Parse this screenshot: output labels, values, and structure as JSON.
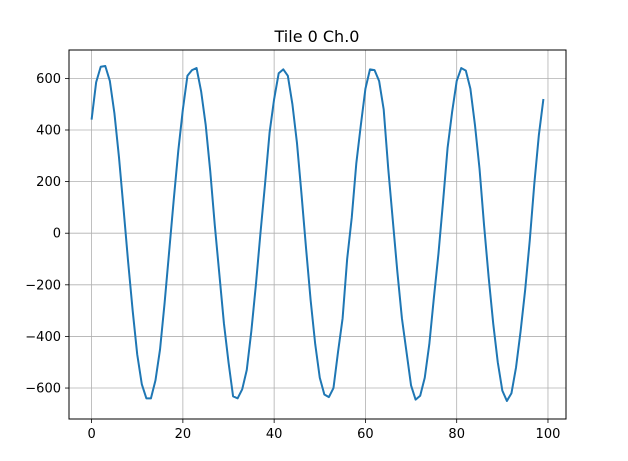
{
  "chart_data": {
    "type": "line",
    "title": "Tile 0 Ch.0",
    "xlabel": "",
    "ylabel": "",
    "xlim": [
      -4.95,
      103.95
    ],
    "ylim": [
      -720,
      710
    ],
    "x_ticks": [
      0,
      20,
      40,
      60,
      80,
      100
    ],
    "x_tick_labels": [
      "0",
      "20",
      "40",
      "60",
      "80",
      "100"
    ],
    "y_ticks": [
      -600,
      -400,
      -200,
      0,
      200,
      400,
      600
    ],
    "y_tick_labels": [
      "−600",
      "−400",
      "−200",
      "0",
      "200",
      "400",
      "600"
    ],
    "grid": true,
    "legend": "none",
    "series": [
      {
        "color": "#1f77b4",
        "x": [
          0,
          1,
          2,
          3,
          4,
          5,
          6,
          7,
          8,
          9,
          10,
          11,
          12,
          13,
          14,
          15,
          16,
          17,
          18,
          19,
          20,
          21,
          22,
          23,
          24,
          25,
          26,
          27,
          28,
          29,
          30,
          31,
          32,
          33,
          34,
          35,
          36,
          37,
          38,
          39,
          40,
          41,
          42,
          43,
          44,
          45,
          46,
          47,
          48,
          49,
          50,
          51,
          52,
          53,
          54,
          55,
          56,
          57,
          58,
          59,
          60,
          61,
          62,
          63,
          64,
          65,
          66,
          67,
          68,
          69,
          70,
          71,
          72,
          73,
          74,
          75,
          76,
          77,
          78,
          79,
          80,
          81,
          82,
          83,
          84,
          85,
          86,
          87,
          88,
          89,
          90,
          91,
          92,
          93,
          94,
          95,
          96,
          97,
          98,
          99
        ],
        "y": [
          440,
          585,
          645,
          648,
          590,
          465,
          295,
          95,
          -110,
          -300,
          -470,
          -585,
          -640,
          -640,
          -570,
          -450,
          -270,
          -70,
          130,
          320,
          480,
          610,
          632,
          640,
          550,
          420,
          240,
          30,
          -160,
          -350,
          -500,
          -632,
          -640,
          -605,
          -530,
          -380,
          -200,
          0,
          190,
          390,
          520,
          620,
          635,
          610,
          500,
          350,
          150,
          -60,
          -260,
          -430,
          -560,
          -625,
          -635,
          -600,
          -460,
          -330,
          -100,
          60,
          270,
          420,
          560,
          635,
          632,
          590,
          480,
          250,
          50,
          -150,
          -330,
          -460,
          -590,
          -645,
          -630,
          -560,
          -430,
          -250,
          -80,
          120,
          330,
          470,
          590,
          640,
          630,
          560,
          420,
          250,
          30,
          -170,
          -350,
          -500,
          -610,
          -650,
          -620,
          -520,
          -380,
          -220,
          -30,
          190,
          380,
          520
        ]
      }
    ]
  }
}
